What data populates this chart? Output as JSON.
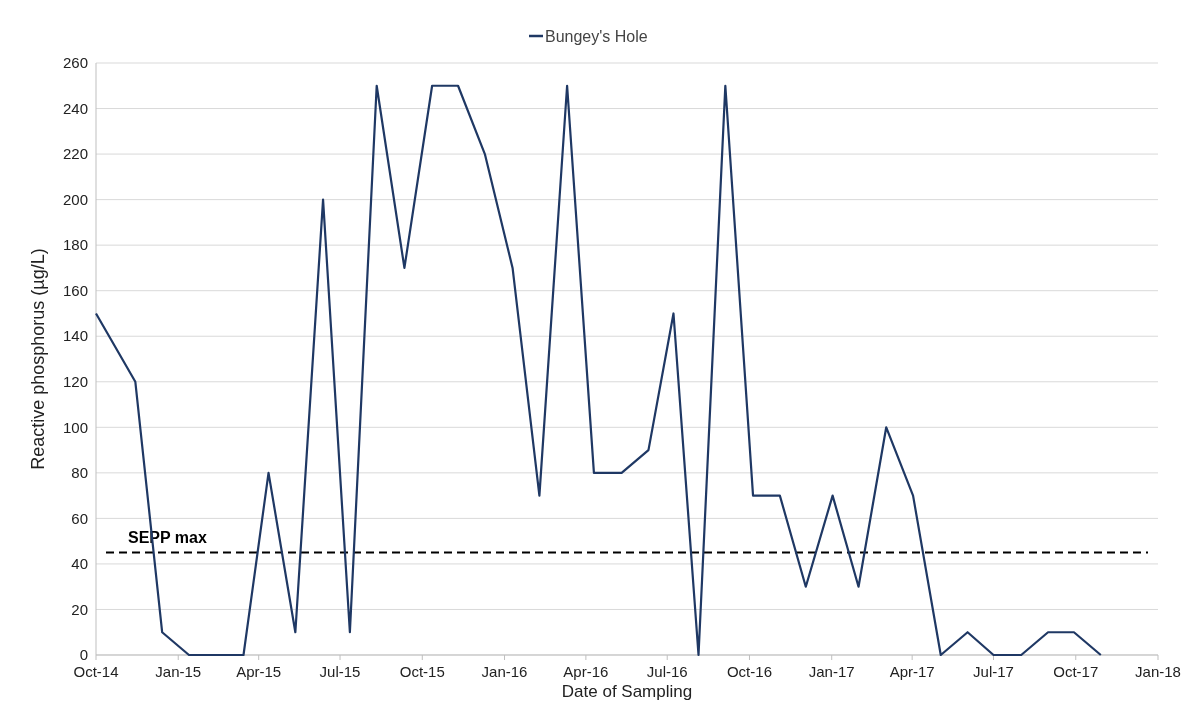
{
  "chart_data": {
    "type": "line",
    "xlabel": "Date of Sampling",
    "ylabel": "Reactive phosphorus (µg/L)",
    "legend": "top",
    "grid": "y",
    "marker": "none",
    "line_style": "solid",
    "xlim": [
      "2014-10-01",
      "2018-01-01"
    ],
    "xticks": [
      {
        "value": "2014-10-01",
        "label": "Oct-14"
      },
      {
        "value": "2015-01-01",
        "label": "Jan-15"
      },
      {
        "value": "2015-04-01",
        "label": "Apr-15"
      },
      {
        "value": "2015-07-01",
        "label": "Jul-15"
      },
      {
        "value": "2015-10-01",
        "label": "Oct-15"
      },
      {
        "value": "2016-01-01",
        "label": "Jan-16"
      },
      {
        "value": "2016-04-01",
        "label": "Apr-16"
      },
      {
        "value": "2016-07-01",
        "label": "Jul-16"
      },
      {
        "value": "2016-10-01",
        "label": "Oct-16"
      },
      {
        "value": "2017-01-01",
        "label": "Jan-17"
      },
      {
        "value": "2017-04-01",
        "label": "Apr-17"
      },
      {
        "value": "2017-07-01",
        "label": "Jul-17"
      },
      {
        "value": "2017-10-01",
        "label": "Oct-17"
      },
      {
        "value": "2018-01-01",
        "label": "Jan-18"
      }
    ],
    "ylim": [
      0,
      260
    ],
    "yticks": [
      0,
      20,
      40,
      60,
      80,
      100,
      120,
      140,
      160,
      180,
      200,
      220,
      240,
      260
    ],
    "x": [
      "2014-10-01",
      "2014-11-14",
      "2014-12-14",
      "2015-01-13",
      "2015-02-12",
      "2015-03-15",
      "2015-04-12",
      "2015-05-12",
      "2015-06-12",
      "2015-07-12",
      "2015-08-11",
      "2015-09-11",
      "2015-10-12",
      "2015-11-10",
      "2015-12-10",
      "2016-01-10",
      "2016-02-09",
      "2016-03-11",
      "2016-04-10",
      "2016-05-11",
      "2016-06-10",
      "2016-07-08",
      "2016-08-05",
      "2016-09-04",
      "2016-10-05",
      "2016-11-04",
      "2016-12-03",
      "2017-01-02",
      "2017-01-31",
      "2017-03-03",
      "2017-04-02",
      "2017-05-03",
      "2017-06-02",
      "2017-07-01",
      "2017-08-01",
      "2017-08-31",
      "2017-09-29",
      "2017-10-29"
    ],
    "series": [
      {
        "name": "Bungey's Hole",
        "color": "#1f3864",
        "values": [
          150,
          120,
          10,
          0,
          0,
          0,
          80,
          10,
          200,
          10,
          250,
          170,
          250,
          250,
          220,
          170,
          70,
          250,
          80,
          80,
          90,
          150,
          0,
          250,
          70,
          70,
          30,
          70,
          30,
          100,
          70,
          0,
          10,
          0,
          0,
          10,
          10,
          0
        ]
      }
    ],
    "ref_lines": [
      {
        "axis": "y",
        "value": 45,
        "label": "SEPP max",
        "color": "#000000",
        "line_style": "dashed"
      }
    ]
  }
}
